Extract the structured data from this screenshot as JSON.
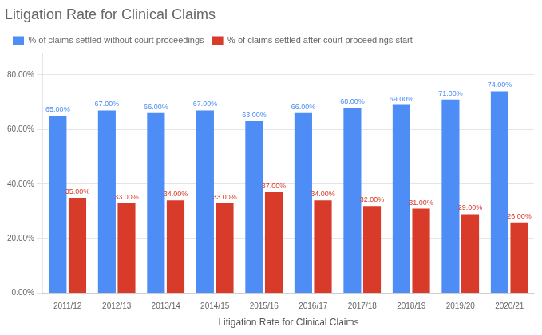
{
  "chart_data": {
    "type": "bar",
    "title": "Litigation Rate for Clinical Claims",
    "xlabel": "Litigation Rate for Clinical Claims",
    "categories": [
      "2011/12",
      "2012/13",
      "2013/14",
      "2014/15",
      "2015/16",
      "2016/17",
      "2017/18",
      "2018/19",
      "2019/20",
      "2020/21"
    ],
    "series": [
      {
        "name": "% of claims settled without court proceedings",
        "color": "#4d8df5",
        "values": [
          0.65,
          0.67,
          0.66,
          0.67,
          0.63,
          0.66,
          0.68,
          0.69,
          0.71,
          0.74
        ],
        "value_labels": [
          "65.00%",
          "67.00%",
          "66.00%",
          "67.00%",
          "63.00%",
          "66.00%",
          "68.00%",
          "69.00%",
          "71.00%",
          "74.00%"
        ]
      },
      {
        "name": "% of claims settled after court proceedings start",
        "color": "#d93b2b",
        "values": [
          0.35,
          0.33,
          0.34,
          0.33,
          0.37,
          0.34,
          0.32,
          0.31,
          0.29,
          0.26
        ],
        "value_labels": [
          "35.00%",
          "33.00%",
          "34.00%",
          "33.00%",
          "37.00%",
          "34.00%",
          "32.00%",
          "31.00%",
          "29.00%",
          "26.00%"
        ]
      }
    ],
    "ylim": [
      0.0,
      0.88
    ],
    "yticks": [
      {
        "value": 0.0,
        "label": "0.00%"
      },
      {
        "value": 0.2,
        "label": "20.00%"
      },
      {
        "value": 0.4,
        "label": "40.00%"
      },
      {
        "value": 0.6,
        "label": "60.00%"
      },
      {
        "value": 0.8,
        "label": "80.00%"
      }
    ],
    "grid": true,
    "legend": "top",
    "data_labels": true
  }
}
